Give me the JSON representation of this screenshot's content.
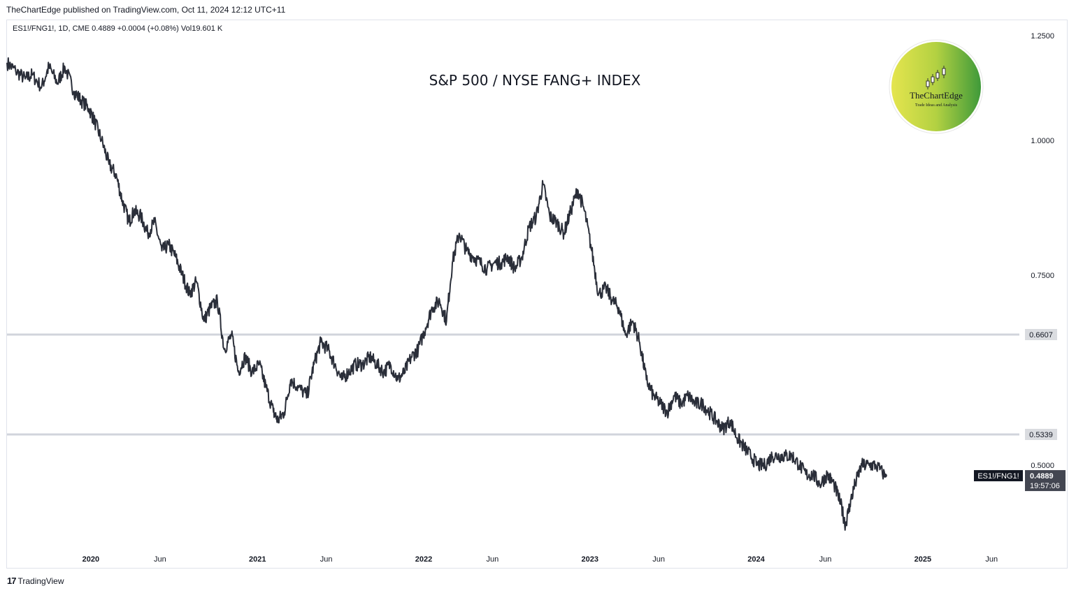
{
  "header": {
    "published": "TheChartEdge published on TradingView.com, Oct 11, 2024 12:12 UTC+11",
    "symbol_line": "ES1!/FNG1!, 1D, CME  0.4889  +0.0004 (+0.08%)  Vol19.601 K"
  },
  "footer": {
    "brand_mark": "17",
    "brand": "TradingView"
  },
  "logo": {
    "name": "TheChartEdge",
    "tagline": "Trade Ideas and Analysis"
  },
  "colors": {
    "line": "#2a2e39",
    "level": "#d1d4dc",
    "badge": "#434651",
    "badge_dark": "#131722"
  },
  "chart_data": {
    "type": "line",
    "title": "S&P 500 / NYSE FANG+ INDEX",
    "y_scale": "log",
    "ylim": [
      0.42,
      1.29
    ],
    "xlim": [
      "2019-07-01",
      "2025-08-01"
    ],
    "y_ticks": [
      "1.2500",
      "1.0000",
      "0.7500",
      "0.5000"
    ],
    "x_ticks": [
      {
        "date": "2020-01-01",
        "label": "2020",
        "bold": true
      },
      {
        "date": "2020-06-01",
        "label": "Jun",
        "bold": false
      },
      {
        "date": "2021-01-01",
        "label": "2021",
        "bold": true
      },
      {
        "date": "2021-06-01",
        "label": "Jun",
        "bold": false
      },
      {
        "date": "2022-01-01",
        "label": "2022",
        "bold": true
      },
      {
        "date": "2022-06-01",
        "label": "Jun",
        "bold": false
      },
      {
        "date": "2023-01-01",
        "label": "2023",
        "bold": true
      },
      {
        "date": "2023-06-01",
        "label": "Jun",
        "bold": false
      },
      {
        "date": "2024-01-01",
        "label": "2024",
        "bold": true
      },
      {
        "date": "2024-06-01",
        "label": "Jun",
        "bold": false
      },
      {
        "date": "2025-01-01",
        "label": "2025",
        "bold": true
      },
      {
        "date": "2025-06-01",
        "label": "Jun",
        "bold": false
      }
    ],
    "levels": [
      {
        "value": 0.6607,
        "label": "0.6607"
      },
      {
        "value": 0.5339,
        "label": "0.5339"
      }
    ],
    "last": {
      "symbol": "ES1!/FNG1!",
      "value": "0.4889",
      "countdown": "19:57:06"
    },
    "series": [
      {
        "x": [
          "2019-07-01",
          "2019-07-20",
          "2019-08-10",
          "2019-08-25",
          "2019-09-15",
          "2019-10-01",
          "2019-10-20",
          "2019-11-05",
          "2019-11-25",
          "2019-12-10",
          "2019-12-28",
          "2020-01-10",
          "2020-01-25",
          "2020-02-10",
          "2020-02-25",
          "2020-03-10",
          "2020-03-25",
          "2020-04-05",
          "2020-04-20",
          "2020-05-05",
          "2020-05-20",
          "2020-06-05",
          "2020-06-20",
          "2020-07-05",
          "2020-07-20",
          "2020-08-05",
          "2020-08-20",
          "2020-09-05",
          "2020-09-20",
          "2020-10-05",
          "2020-10-20",
          "2020-11-05",
          "2020-11-20",
          "2020-12-05",
          "2020-12-20",
          "2021-01-05",
          "2021-01-20",
          "2021-02-05",
          "2021-02-15",
          "2021-03-01",
          "2021-03-15",
          "2021-04-01",
          "2021-04-20",
          "2021-05-05",
          "2021-05-20",
          "2021-06-05",
          "2021-06-20",
          "2021-07-05",
          "2021-07-20",
          "2021-08-05",
          "2021-08-20",
          "2021-09-05",
          "2021-09-20",
          "2021-10-05",
          "2021-10-20",
          "2021-11-05",
          "2021-11-20",
          "2021-12-05",
          "2021-12-20",
          "2022-01-05",
          "2022-01-20",
          "2022-02-05",
          "2022-02-20",
          "2022-03-05",
          "2022-03-20",
          "2022-04-05",
          "2022-04-20",
          "2022-05-05",
          "2022-05-20",
          "2022-06-05",
          "2022-06-20",
          "2022-07-05",
          "2022-07-20",
          "2022-08-05",
          "2022-08-20",
          "2022-09-05",
          "2022-09-20",
          "2022-10-05",
          "2022-10-20",
          "2022-11-05",
          "2022-11-20",
          "2022-12-05",
          "2022-12-20",
          "2023-01-05",
          "2023-01-20",
          "2023-02-05",
          "2023-02-20",
          "2023-03-05",
          "2023-03-20",
          "2023-04-05",
          "2023-04-20",
          "2023-05-05",
          "2023-05-20",
          "2023-06-05",
          "2023-06-20",
          "2023-07-05",
          "2023-07-20",
          "2023-08-05",
          "2023-08-20",
          "2023-09-05",
          "2023-09-20",
          "2023-10-05",
          "2023-10-20",
          "2023-11-05",
          "2023-11-20",
          "2023-12-05",
          "2023-12-20",
          "2024-01-05",
          "2024-01-20",
          "2024-02-05",
          "2024-02-20",
          "2024-03-05",
          "2024-03-20",
          "2024-04-05",
          "2024-04-20",
          "2024-05-05",
          "2024-05-20",
          "2024-06-05",
          "2024-06-20",
          "2024-07-05",
          "2024-07-15",
          "2024-07-25",
          "2024-08-05",
          "2024-08-20",
          "2024-09-05",
          "2024-09-20",
          "2024-10-10"
        ],
        "values": [
          1.18,
          1.16,
          1.14,
          1.15,
          1.12,
          1.17,
          1.13,
          1.17,
          1.11,
          1.09,
          1.07,
          1.04,
          1.0,
          0.95,
          0.93,
          0.88,
          0.84,
          0.86,
          0.85,
          0.82,
          0.84,
          0.79,
          0.8,
          0.78,
          0.75,
          0.72,
          0.74,
          0.68,
          0.7,
          0.71,
          0.64,
          0.66,
          0.61,
          0.63,
          0.61,
          0.62,
          0.59,
          0.56,
          0.55,
          0.56,
          0.6,
          0.59,
          0.58,
          0.62,
          0.65,
          0.64,
          0.62,
          0.6,
          0.61,
          0.62,
          0.62,
          0.63,
          0.62,
          0.61,
          0.62,
          0.6,
          0.61,
          0.63,
          0.64,
          0.67,
          0.7,
          0.71,
          0.68,
          0.77,
          0.82,
          0.79,
          0.78,
          0.77,
          0.76,
          0.77,
          0.77,
          0.78,
          0.76,
          0.78,
          0.83,
          0.85,
          0.91,
          0.85,
          0.84,
          0.82,
          0.86,
          0.9,
          0.86,
          0.79,
          0.72,
          0.73,
          0.71,
          0.7,
          0.66,
          0.68,
          0.65,
          0.6,
          0.58,
          0.57,
          0.56,
          0.58,
          0.57,
          0.58,
          0.57,
          0.57,
          0.56,
          0.55,
          0.54,
          0.55,
          0.53,
          0.52,
          0.51,
          0.5,
          0.5,
          0.51,
          0.51,
          0.51,
          0.51,
          0.5,
          0.49,
          0.49,
          0.48,
          0.49,
          0.48,
          0.46,
          0.44,
          0.46,
          0.48,
          0.5,
          0.5,
          0.5,
          0.489
        ]
      }
    ]
  }
}
